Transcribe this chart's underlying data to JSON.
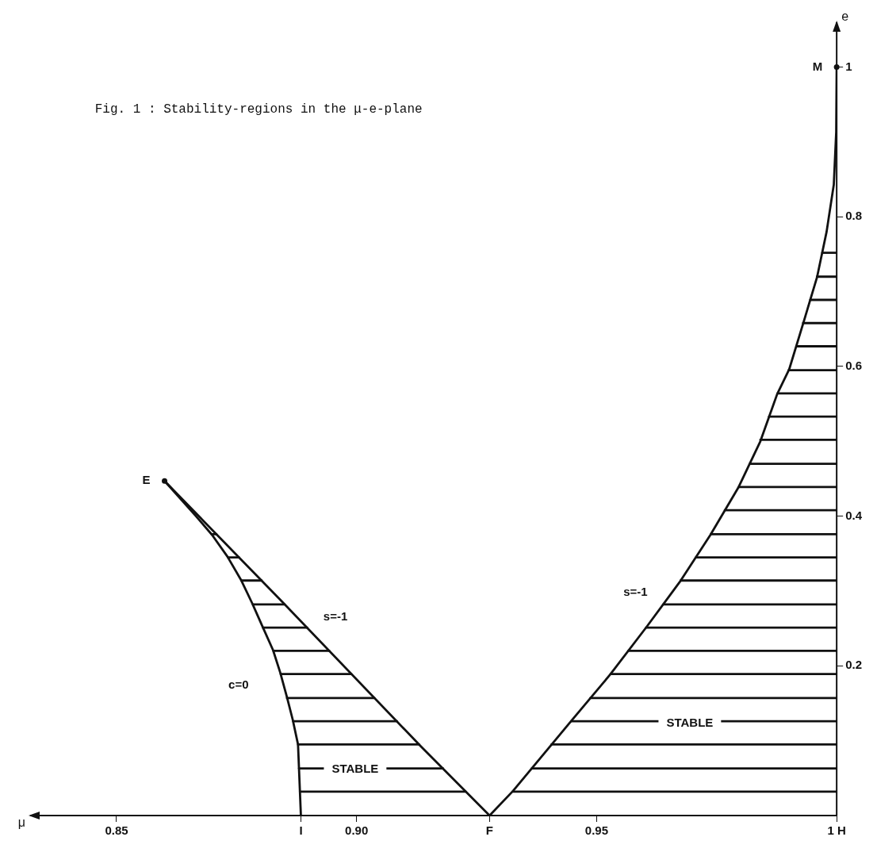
{
  "chart_data": {
    "type": "line",
    "title": "Fig. 1 : Stability-regions in the μ-e-plane",
    "xlabel": "μ",
    "ylabel": "e",
    "xlim": [
      0.832,
      1.0
    ],
    "ylim": [
      0,
      1.06
    ],
    "xticks": [
      0.85,
      {
        "value": 0.8884,
        "label": "I"
      },
      {
        "value": 0.9,
        "label": "0.90"
      },
      {
        "value": 0.9277,
        "label": "F"
      },
      0.95,
      {
        "value": 1,
        "label": "1 H"
      }
    ],
    "yticks": [
      0.2,
      0.4,
      0.6,
      0.8,
      1
    ],
    "grid": false,
    "legend": false,
    "marker": "none",
    "line_style": "solid",
    "series": [
      {
        "color": "#111111",
        "x": [
          0.8884,
          0.8878,
          0.8867,
          0.8855,
          0.8841,
          0.8826,
          0.8803,
          0.8783,
          0.876,
          0.8731,
          0.8699,
          0.8664,
          0.86
        ],
        "values": [
          0,
          0.095,
          0.128,
          0.158,
          0.191,
          0.221,
          0.254,
          0.283,
          0.314,
          0.346,
          0.375,
          0.401,
          0.447
        ]
      },
      {
        "color": "#111111",
        "x": [
          0.86,
          0.8843,
          0.9133,
          0.9277
        ],
        "values": [
          0.447,
          0.287,
          0.093,
          0
        ]
      },
      {
        "color": "#111111",
        "x": [
          0.9277,
          0.9326,
          0.9448,
          0.9529,
          0.9604,
          0.9673,
          0.9737,
          0.9795,
          0.9841,
          0.9876,
          0.9901,
          0.993,
          0.9959,
          0.9979,
          0.9994,
          0.9999,
          1
        ],
        "values": [
          0,
          0.033,
          0.127,
          0.189,
          0.252,
          0.312,
          0.375,
          0.438,
          0.5,
          0.563,
          0.596,
          0.657,
          0.719,
          0.78,
          0.843,
          0.913,
          1
        ]
      },
      {
        "color": "#111111",
        "x": [
          0.8882,
          0.9227,
          null,
          0.888,
          0.918,
          null,
          0.8878,
          0.913,
          null,
          0.8868,
          0.9084,
          null,
          0.8855,
          0.9037,
          null,
          0.8842,
          0.8989,
          null,
          0.8827,
          0.8943,
          null,
          0.8805,
          0.8897,
          null,
          0.8784,
          0.885,
          null,
          0.876,
          0.8802,
          null,
          0.8732,
          0.8755,
          null,
          0.8698,
          0.8708,
          null,
          0.9325,
          1,
          null,
          0.9365,
          1,
          null,
          0.9406,
          1,
          null,
          0.9447,
          1,
          null,
          0.9487,
          1,
          null,
          0.9529,
          1,
          null,
          0.9566,
          1,
          null,
          0.9603,
          1,
          null,
          0.9639,
          1,
          null,
          0.9675,
          1,
          null,
          0.9707,
          1,
          null,
          0.9738,
          1,
          null,
          0.9767,
          1,
          null,
          0.9796,
          1,
          null,
          0.9819,
          1,
          null,
          0.9841,
          1,
          null,
          0.9859,
          1,
          null,
          0.9877,
          1,
          null,
          0.99,
          1,
          null,
          0.9916,
          1,
          null,
          0.993,
          1,
          null,
          0.9945,
          1,
          null,
          0.9959,
          1,
          null,
          0.997,
          1
        ],
        "values": [
          0.032,
          0.032,
          null,
          0.063,
          0.063,
          null,
          0.095,
          0.095,
          null,
          0.126,
          0.126,
          null,
          0.157,
          0.157,
          null,
          0.189,
          0.189,
          null,
          0.22,
          0.22,
          null,
          0.251,
          0.251,
          null,
          0.282,
          0.282,
          null,
          0.314,
          0.314,
          null,
          0.345,
          0.345,
          null,
          0.376,
          0.376,
          null,
          0.032,
          0.032,
          null,
          0.063,
          0.063,
          null,
          0.095,
          0.095,
          null,
          0.126,
          0.126,
          null,
          0.157,
          0.157,
          null,
          0.189,
          0.189,
          null,
          0.22,
          0.22,
          null,
          0.251,
          0.251,
          null,
          0.282,
          0.282,
          null,
          0.314,
          0.314,
          null,
          0.345,
          0.345,
          null,
          0.376,
          0.376,
          null,
          0.408,
          0.408,
          null,
          0.439,
          0.439,
          null,
          0.47,
          0.47,
          null,
          0.502,
          0.502,
          null,
          0.533,
          0.533,
          null,
          0.564,
          0.564,
          null,
          0.595,
          0.595,
          null,
          0.627,
          0.627,
          null,
          0.658,
          0.658,
          null,
          0.689,
          0.689,
          null,
          0.72,
          0.72,
          null,
          0.752,
          0.752
        ]
      }
    ],
    "annotations": [
      {
        "text": "E",
        "x": 0.86,
        "y": 0.447
      },
      {
        "text": "M",
        "x": 1,
        "y": 1
      },
      "c=0",
      "s=-1",
      "s=-1",
      "STABLE",
      "STABLE"
    ]
  }
}
